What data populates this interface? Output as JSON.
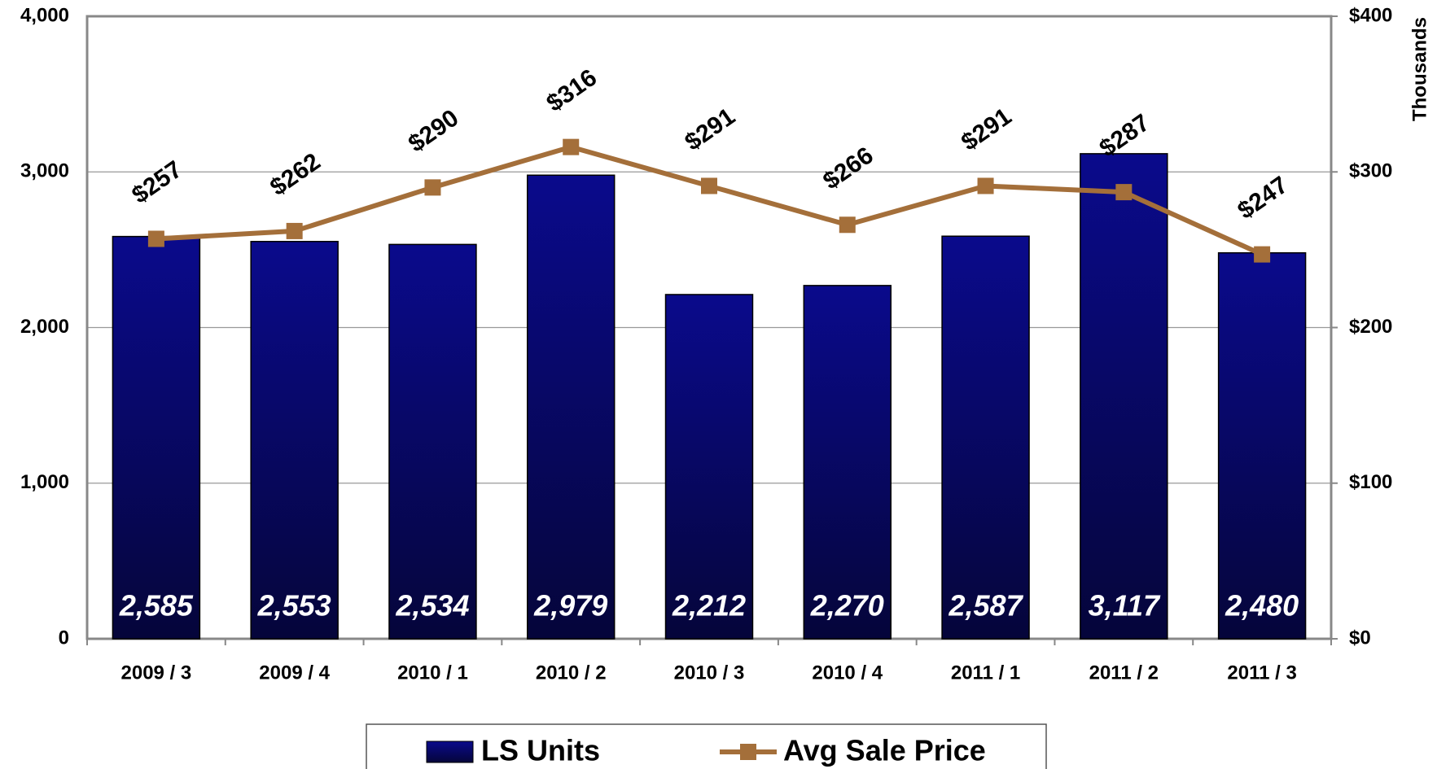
{
  "chart_data": {
    "type": "bar",
    "categories": [
      "2009 / 3",
      "2009 / 4",
      "2010 / 1",
      "2010 / 2",
      "2010 / 3",
      "2010 / 4",
      "2011 / 1",
      "2011 / 2",
      "2011 / 3"
    ],
    "series": [
      {
        "name": "LS Units",
        "type": "bar",
        "color": "#0a0a8c",
        "values": [
          2585,
          2553,
          2534,
          2979,
          2212,
          2270,
          2587,
          3117,
          2480
        ],
        "value_labels": [
          "2,585",
          "2,553",
          "2,534",
          "2,979",
          "2,212",
          "2,270",
          "2,587",
          "3,117",
          "2,480"
        ]
      },
      {
        "name": "Avg Sale Price",
        "type": "line",
        "axis": "y2",
        "color": "#a46f3a",
        "values": [
          257,
          262,
          290,
          316,
          291,
          266,
          291,
          287,
          247
        ],
        "value_labels": [
          "$257",
          "$262",
          "$290",
          "$316",
          "$291",
          "$266",
          "$291",
          "$287",
          "$247"
        ]
      }
    ],
    "ylim": [
      0,
      4000
    ],
    "yticks": [
      0,
      {
        "value": 1000,
        "label": "1,000"
      },
      {
        "value": 2000,
        "label": "2,000"
      },
      {
        "value": 3000,
        "label": "3,000"
      },
      {
        "value": 4000,
        "label": "4,000"
      }
    ],
    "y2lim": [
      0,
      400
    ],
    "y2ticks": [
      {
        "value": 0,
        "label": "$0"
      },
      {
        "value": 100,
        "label": "$100"
      },
      {
        "value": 200,
        "label": "$200"
      },
      {
        "value": 300,
        "label": "$300"
      },
      {
        "value": 400,
        "label": "$400"
      }
    ],
    "y2label": "Thousands",
    "grid": true
  }
}
